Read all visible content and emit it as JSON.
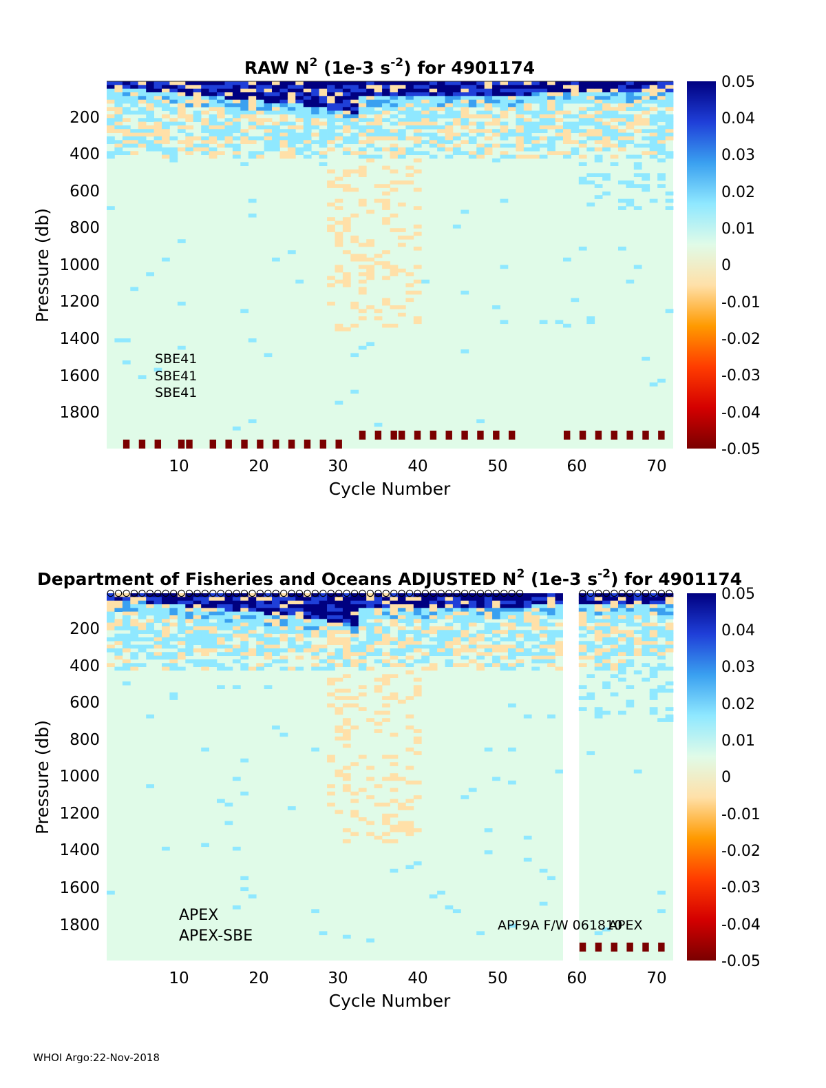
{
  "footer": "WHOI Argo:22-Nov-2018",
  "colors": {
    "background": "#e0fbe8",
    "colormap": [
      "#7a0000",
      "#d40000",
      "#ff3c00",
      "#ff9a00",
      "#ffe0a8",
      "#e0fbe8",
      "#8fe8ff",
      "#3aa0f0",
      "#1f3fd8",
      "#000080"
    ]
  },
  "chart_data": [
    {
      "type": "heatmap",
      "title_parts": [
        "RAW N",
        "2",
        " (1e-3 s",
        "-2",
        ") for 4901174"
      ],
      "xlabel": "Cycle Number",
      "ylabel": "Pressure (db)",
      "xlim": [
        1,
        72
      ],
      "ylim": [
        2000,
        0
      ],
      "xticks": [
        "10",
        "20",
        "30",
        "40",
        "50",
        "60",
        "70"
      ],
      "yticks": [
        "200",
        "400",
        "600",
        "800",
        "1000",
        "1200",
        "1400",
        "1600",
        "1800"
      ],
      "colorbar": {
        "range": [
          -0.05,
          0.05
        ],
        "ticks": [
          "0.05",
          "0.04",
          "0.03",
          "0.02",
          "0.01",
          "0",
          "-0.01",
          "-0.02",
          "-0.03",
          "-0.04",
          "-0.05"
        ]
      },
      "annotations": [
        "SBE41",
        "SBE41",
        "SBE41"
      ],
      "gap_cycles": [],
      "bottom_markers": {
        "low_cycles": [
          3,
          5,
          7,
          10,
          11,
          14,
          16,
          18,
          20,
          22,
          24,
          26,
          28,
          30
        ],
        "high_cycles": [
          33,
          35,
          37,
          38,
          40,
          42,
          44,
          46,
          48,
          50,
          52,
          59,
          61,
          63,
          65,
          67,
          69,
          71
        ]
      },
      "top_circles": []
    },
    {
      "type": "heatmap",
      "title_parts": [
        "Department of Fisheries and Oceans  ADJUSTED N",
        "2",
        " (1e-3 s",
        "-2",
        ") for 4901174"
      ],
      "xlabel": "Cycle Number",
      "ylabel": "Pressure (db)",
      "xlim": [
        1,
        72
      ],
      "ylim": [
        2000,
        0
      ],
      "xticks": [
        "10",
        "20",
        "30",
        "40",
        "50",
        "60",
        "70"
      ],
      "yticks": [
        "200",
        "400",
        "600",
        "800",
        "1000",
        "1200",
        "1400",
        "1600",
        "1800"
      ],
      "colorbar": {
        "range": [
          -0.05,
          0.05
        ],
        "ticks": [
          "0.05",
          "0.04",
          "0.03",
          "0.02",
          "0.01",
          "0",
          "-0.01",
          "-0.02",
          "-0.03",
          "-0.04",
          "-0.05"
        ]
      },
      "annotations": [
        "APEX",
        "APEX-SBE",
        "APF9A F/W 061810",
        "APEX"
      ],
      "gap_cycles": [
        59,
        60
      ],
      "bottom_markers": {
        "low_cycles": [],
        "high_cycles": [
          61,
          63,
          65,
          67,
          69,
          71
        ]
      },
      "top_circles": [
        1,
        53,
        61,
        72
      ]
    }
  ]
}
